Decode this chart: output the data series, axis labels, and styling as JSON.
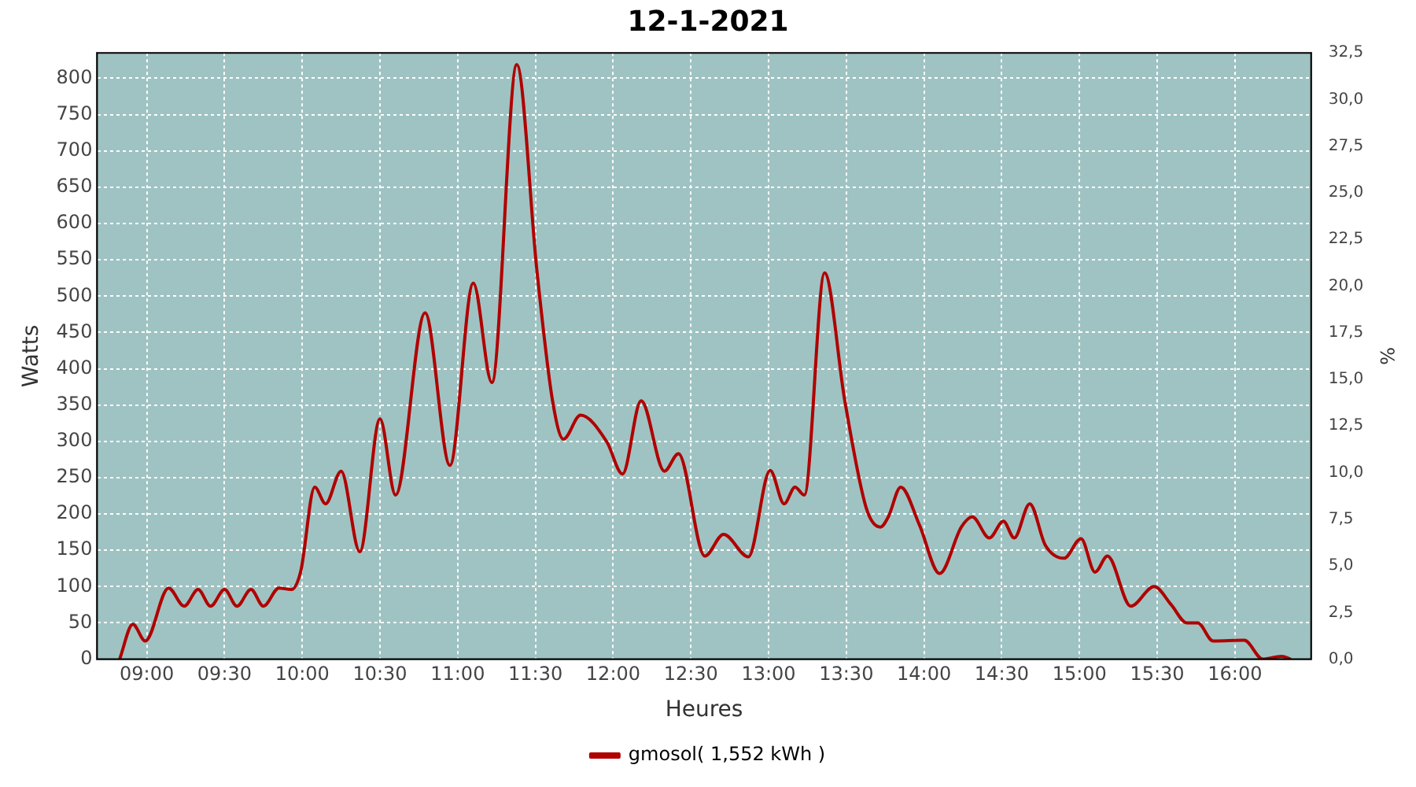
{
  "chart_data": {
    "type": "line",
    "title": "12-1-2021",
    "xlabel": "Heures",
    "ylabel": "Watts",
    "y2label": "%",
    "xlim": [
      8.68,
      16.49
    ],
    "xticks": [
      {
        "value": 9,
        "label": "09:00"
      },
      {
        "value": 9.5,
        "label": "09:30"
      },
      {
        "value": 10,
        "label": "10:00"
      },
      {
        "value": 10.5,
        "label": "10:30"
      },
      {
        "value": 11,
        "label": "11:00"
      },
      {
        "value": 11.5,
        "label": "11:30"
      },
      {
        "value": 12,
        "label": "12:00"
      },
      {
        "value": 12.5,
        "label": "12:30"
      },
      {
        "value": 13,
        "label": "13:00"
      },
      {
        "value": 13.5,
        "label": "13:30"
      },
      {
        "value": 14,
        "label": "14:00"
      },
      {
        "value": 14.5,
        "label": "14:30"
      },
      {
        "value": 15,
        "label": "15:00"
      },
      {
        "value": 15.5,
        "label": "15:30"
      },
      {
        "value": 16,
        "label": "16:00"
      }
    ],
    "ylim": [
      0,
      835
    ],
    "yticks": [
      0,
      50,
      100,
      150,
      200,
      250,
      300,
      350,
      400,
      450,
      500,
      550,
      600,
      650,
      700,
      750,
      800
    ],
    "y2lim": [
      0,
      32.5
    ],
    "y2ticks": [
      {
        "value": 0,
        "label": "0,0"
      },
      {
        "value": 2.5,
        "label": "2,5"
      },
      {
        "value": 5,
        "label": "5,0"
      },
      {
        "value": 7.5,
        "label": "7,5"
      },
      {
        "value": 10,
        "label": "10,0"
      },
      {
        "value": 12.5,
        "label": "12,5"
      },
      {
        "value": 15,
        "label": "15,0"
      },
      {
        "value": 17.5,
        "label": "17,5"
      },
      {
        "value": 20,
        "label": "20,0"
      },
      {
        "value": 22.5,
        "label": "22,5"
      },
      {
        "value": 25,
        "label": "25,0"
      },
      {
        "value": 27.5,
        "label": "27,5"
      },
      {
        "value": 30,
        "label": "30,0"
      },
      {
        "value": 32.5,
        "label": "32,5"
      }
    ],
    "grid": true,
    "legend": "bottom",
    "marker": "none",
    "line_style": "solid",
    "series": [
      {
        "name": "gmosol( 1,552 kWh )",
        "color": "#b00000",
        "x": [
          8.825,
          8.91,
          8.99,
          9.14,
          9.24,
          9.33,
          9.41,
          9.5,
          9.58,
          9.67,
          9.75,
          9.85,
          9.93,
          9.99,
          10.08,
          10.15,
          10.25,
          10.37,
          10.5,
          10.6,
          10.79,
          10.95,
          11.1,
          11.22,
          11.38,
          11.51,
          11.61,
          11.68,
          11.79,
          11.96,
          12.06,
          12.18,
          12.33,
          12.42,
          12.59,
          12.71,
          12.87,
          13.01,
          13.1,
          13.17,
          13.23,
          13.36,
          13.49,
          13.63,
          13.72,
          13.77,
          13.85,
          13.97,
          14.1,
          14.24,
          14.31,
          14.42,
          14.51,
          14.58,
          14.68,
          14.78,
          14.9,
          15.01,
          15.1,
          15.18,
          15.33,
          15.48,
          15.59,
          15.69,
          15.76,
          15.86,
          16.06,
          16.18,
          16.3,
          16.36
        ],
        "values": [
          0,
          48,
          25,
          98,
          73,
          96,
          73,
          96,
          73,
          96,
          73,
          98,
          96,
          121,
          237,
          214,
          259,
          148,
          331,
          226,
          477,
          267,
          518,
          381,
          819,
          534,
          356,
          303,
          336,
          299,
          255,
          356,
          259,
          283,
          142,
          172,
          141,
          260,
          214,
          237,
          226,
          532,
          356,
          207,
          182,
          196,
          237,
          185,
          118,
          182,
          196,
          167,
          190,
          167,
          214,
          157,
          139,
          166,
          120,
          142,
          73,
          100,
          75,
          50,
          50,
          25,
          26,
          0,
          4,
          0
        ]
      }
    ]
  }
}
